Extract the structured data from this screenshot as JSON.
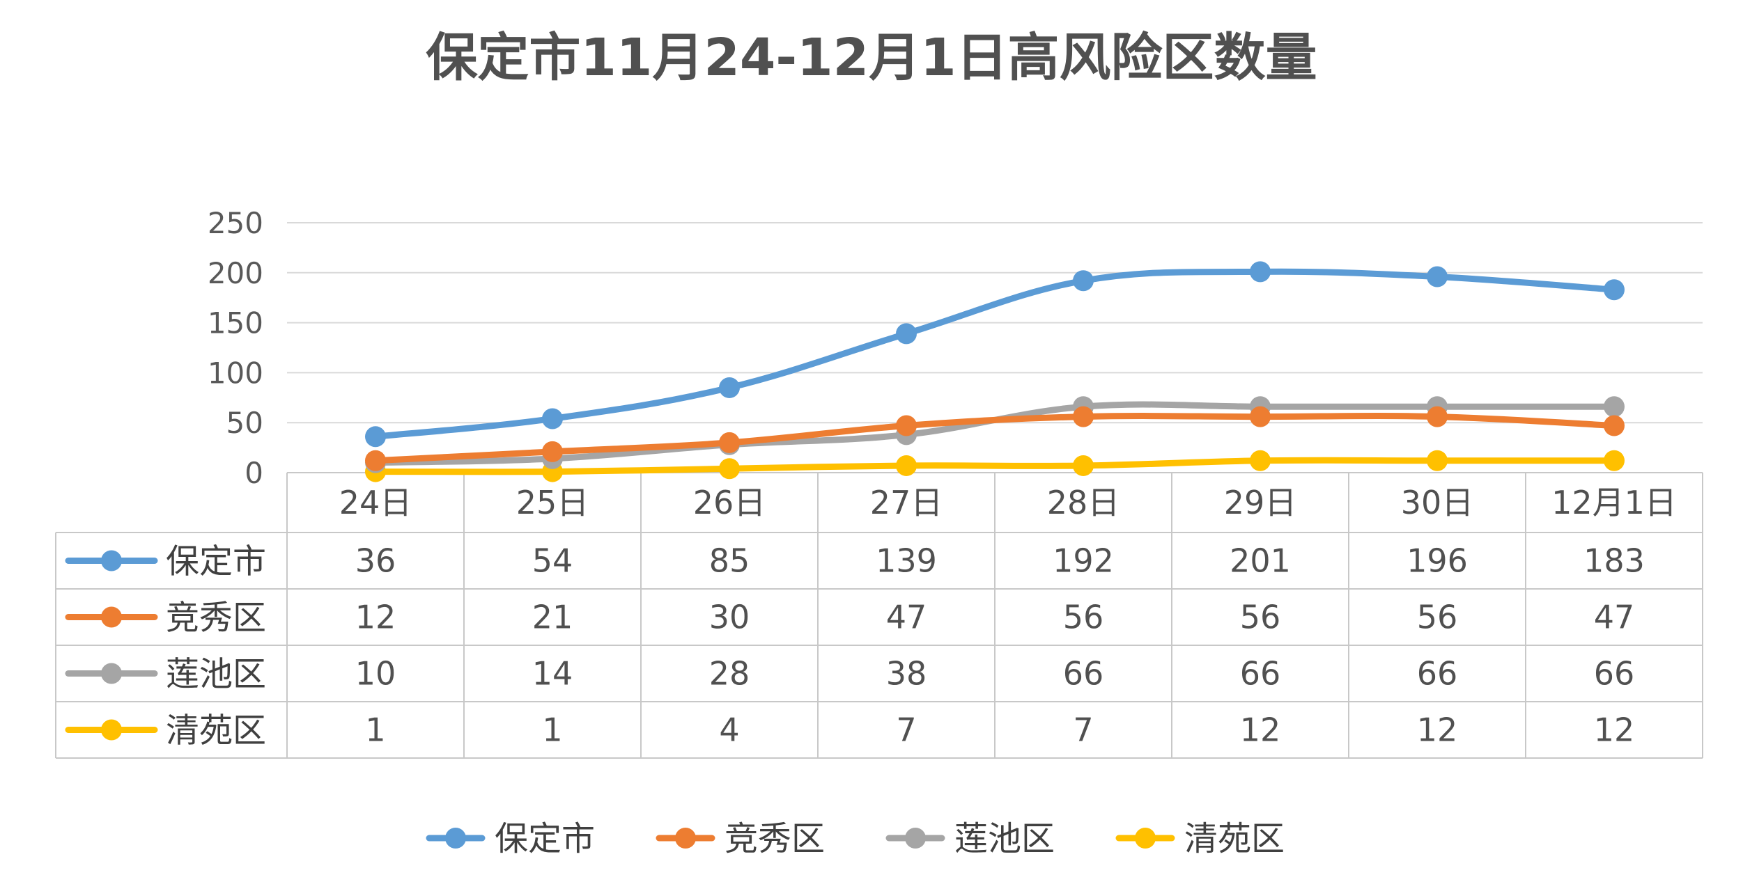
{
  "chart_data": {
    "type": "line",
    "title": "保定市11月24-12月1日高风险区数量",
    "categories": [
      "24日",
      "25日",
      "26日",
      "27日",
      "28日",
      "29日",
      "30日",
      "12月1日"
    ],
    "ylim": [
      0,
      250
    ],
    "yticks": [
      0,
      50,
      100,
      150,
      200,
      250
    ],
    "grid": true,
    "legend_position": "bottom",
    "data_table": true,
    "series": [
      {
        "name": "保定市",
        "color": "#5b9bd5",
        "values": [
          36,
          54,
          85,
          139,
          192,
          201,
          196,
          183
        ]
      },
      {
        "name": "竞秀区",
        "color": "#ed7d31",
        "values": [
          12,
          21,
          30,
          47,
          56,
          56,
          56,
          47
        ]
      },
      {
        "name": "莲池区",
        "color": "#a5a5a5",
        "values": [
          10,
          14,
          28,
          38,
          66,
          66,
          66,
          66
        ]
      },
      {
        "name": "清苑区",
        "color": "#ffc000",
        "values": [
          1,
          1,
          4,
          7,
          7,
          12,
          12,
          12
        ]
      }
    ]
  }
}
